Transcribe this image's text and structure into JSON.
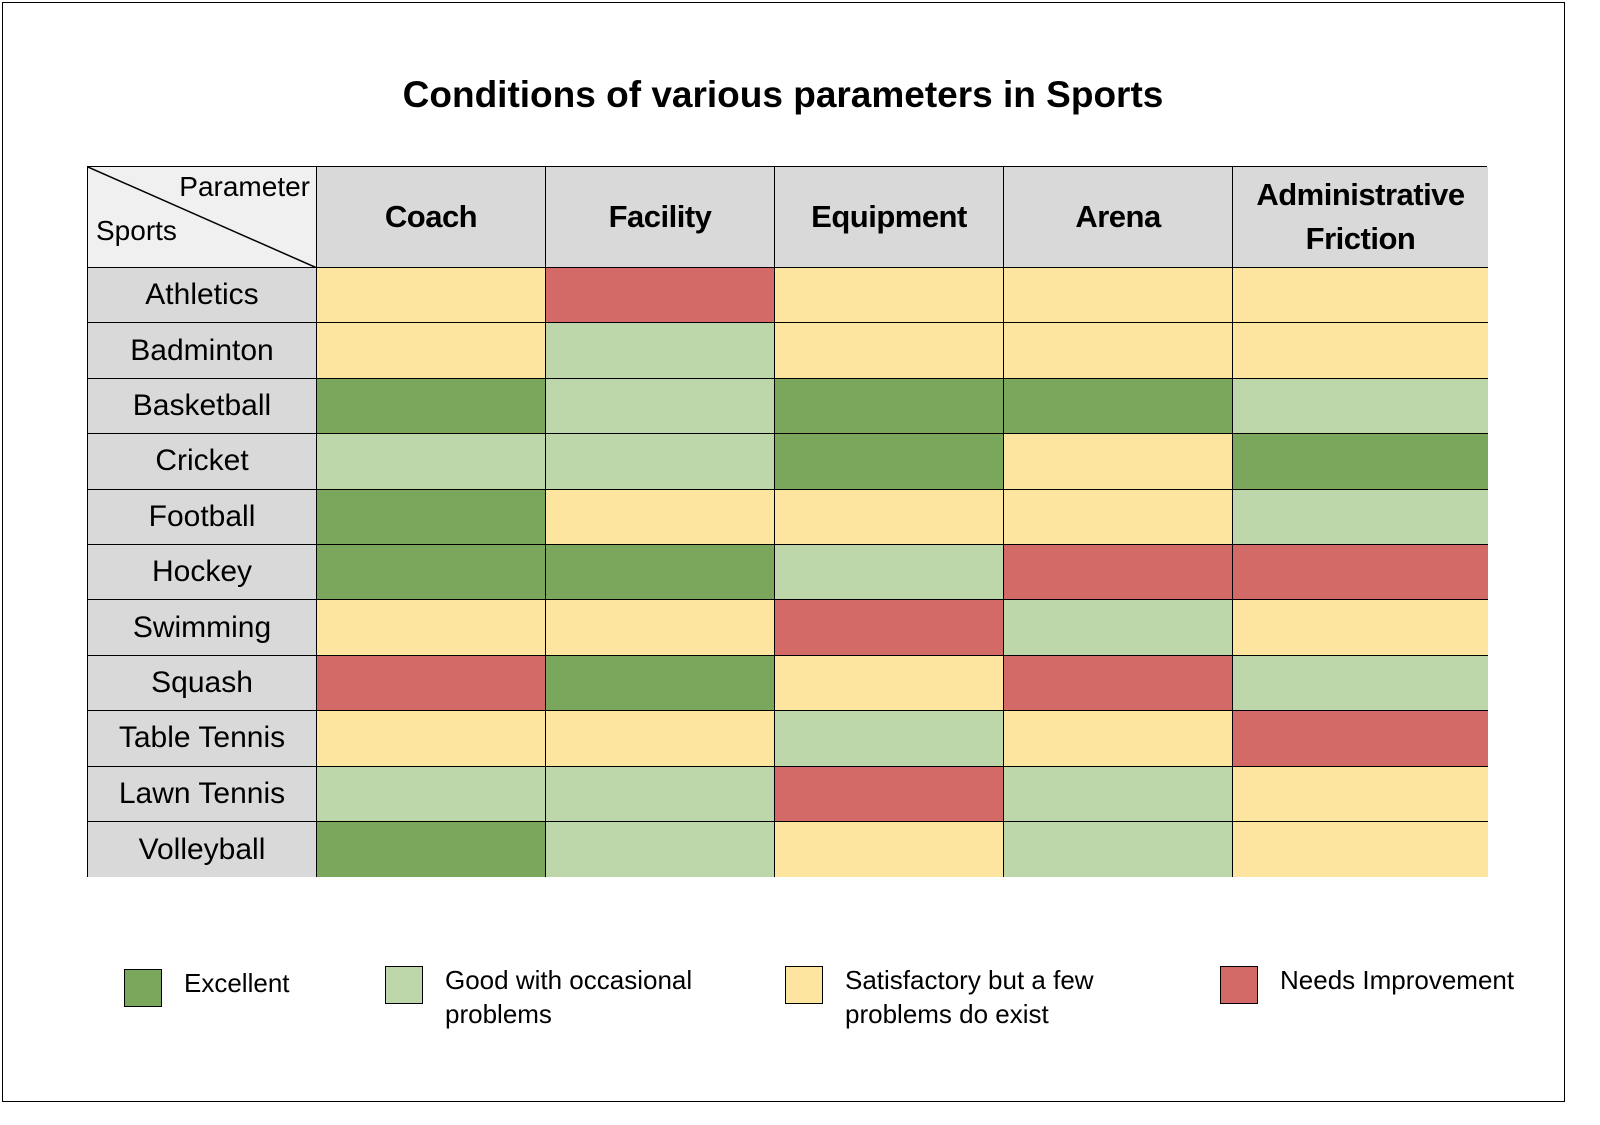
{
  "chart_data": {
    "type": "heatmap",
    "title": "Conditions of various parameters in Sports",
    "corner": {
      "column_axis_label": "Parameter",
      "row_axis_label": "Sports"
    },
    "columns": [
      "Coach",
      "Facility",
      "Equipment",
      "Arena",
      "Administrative Friction"
    ],
    "rows": [
      "Athletics",
      "Badminton",
      "Basketball",
      "Cricket",
      "Football",
      "Hockey",
      "Swimming",
      "Squash",
      "Table Tennis",
      "Lawn Tennis",
      "Volleyball"
    ],
    "values": [
      [
        "Satisfactory",
        "Needs Improvement",
        "Satisfactory",
        "Satisfactory",
        "Satisfactory"
      ],
      [
        "Satisfactory",
        "Good",
        "Satisfactory",
        "Satisfactory",
        "Satisfactory"
      ],
      [
        "Excellent",
        "Good",
        "Excellent",
        "Excellent",
        "Good"
      ],
      [
        "Good",
        "Good",
        "Excellent",
        "Satisfactory",
        "Excellent"
      ],
      [
        "Excellent",
        "Satisfactory",
        "Satisfactory",
        "Satisfactory",
        "Good"
      ],
      [
        "Excellent",
        "Excellent",
        "Good",
        "Needs Improvement",
        "Needs Improvement"
      ],
      [
        "Satisfactory",
        "Satisfactory",
        "Needs Improvement",
        "Good",
        "Satisfactory"
      ],
      [
        "Needs Improvement",
        "Excellent",
        "Satisfactory",
        "Needs Improvement",
        "Good"
      ],
      [
        "Satisfactory",
        "Satisfactory",
        "Good",
        "Satisfactory",
        "Needs Improvement"
      ],
      [
        "Good",
        "Good",
        "Needs Improvement",
        "Good",
        "Satisfactory"
      ],
      [
        "Excellent",
        "Good",
        "Satisfactory",
        "Good",
        "Satisfactory"
      ]
    ],
    "legend": [
      {
        "key": "Excellent",
        "label": "Excellent",
        "color": "#7aa75b"
      },
      {
        "key": "Good",
        "label": "Good with occasional problems",
        "color": "#bdd7ab"
      },
      {
        "key": "Satisfactory",
        "label": "Satisfactory but a few problems do exist",
        "color": "#fde59f"
      },
      {
        "key": "Needs Improvement",
        "label": "Needs Improvement",
        "color": "#d46a68"
      }
    ],
    "legend_placement": "bottom",
    "header_color": "#d9d9d9"
  }
}
